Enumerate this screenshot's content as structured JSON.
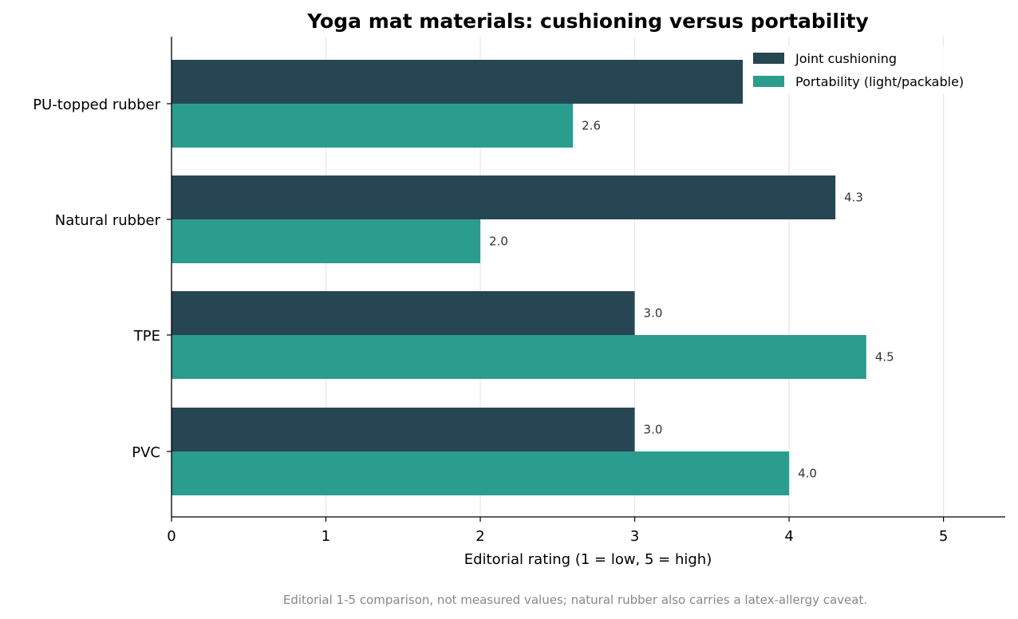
{
  "chart_data": {
    "type": "bar",
    "orientation": "horizontal",
    "title": "Yoga mat materials: cushioning versus portability",
    "xlabel": "Editorial rating (1 = low, 5 = high)",
    "ylabel": "",
    "xlim": [
      0,
      5.4
    ],
    "xticks": [
      0,
      1,
      2,
      3,
      4,
      5
    ],
    "xtick_labels": [
      "0",
      "1",
      "2",
      "3",
      "4",
      "5"
    ],
    "grid": "vertical",
    "legend_position": "top-right",
    "categories": [
      "PU-topped rubber",
      "Natural rubber",
      "TPE",
      "PVC"
    ],
    "series": [
      {
        "name": "Joint cushioning",
        "color": "#264653",
        "values": [
          3.7,
          4.3,
          3.0,
          3.0
        ],
        "labels": [
          "",
          "4.3",
          "3.0",
          "3.0"
        ]
      },
      {
        "name": "Portability (light/packable)",
        "color": "#2a9d8f",
        "values": [
          2.6,
          2.0,
          4.5,
          4.0
        ],
        "labels": [
          "2.6",
          "2.0",
          "4.5",
          "4.0"
        ]
      }
    ],
    "footnote": "Editorial 1-5 comparison, not measured values; natural rubber also carries a latex-allergy caveat."
  }
}
